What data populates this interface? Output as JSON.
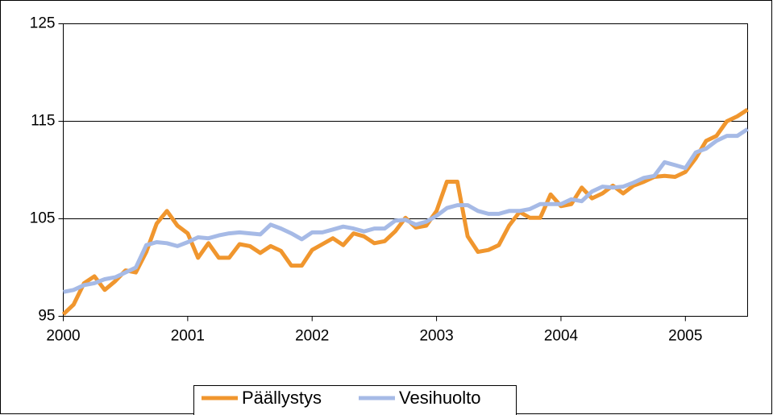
{
  "chart_data": {
    "type": "line",
    "x": [
      2000,
      2000.083,
      2000.167,
      2000.25,
      2000.333,
      2000.417,
      2000.5,
      2000.583,
      2000.667,
      2000.75,
      2000.833,
      2000.917,
      2001,
      2001.083,
      2001.167,
      2001.25,
      2001.333,
      2001.417,
      2001.5,
      2001.583,
      2001.667,
      2001.75,
      2001.833,
      2001.917,
      2002,
      2002.083,
      2002.167,
      2002.25,
      2002.333,
      2002.417,
      2002.5,
      2002.583,
      2002.667,
      2002.75,
      2002.833,
      2002.917,
      2003,
      2003.083,
      2003.167,
      2003.25,
      2003.333,
      2003.417,
      2003.5,
      2003.583,
      2003.667,
      2003.75,
      2003.833,
      2003.917,
      2004,
      2004.083,
      2004.167,
      2004.25,
      2004.333,
      2004.417,
      2004.5,
      2004.583,
      2004.667,
      2004.75,
      2004.833,
      2004.917,
      2005,
      2005.083,
      2005.167,
      2005.25,
      2005.333,
      2005.417,
      2005.5
    ],
    "series": [
      {
        "name": "Päällystys",
        "color": "#f0962e",
        "values": [
          95.2,
          96.2,
          98.4,
          99.1,
          97.7,
          98.6,
          99.7,
          99.5,
          101.6,
          104.5,
          105.8,
          104.3,
          103.5,
          101.0,
          102.5,
          101.0,
          101.0,
          102.4,
          102.2,
          101.5,
          102.2,
          101.7,
          100.2,
          100.2,
          101.8,
          102.4,
          103.0,
          102.3,
          103.5,
          103.2,
          102.5,
          102.7,
          103.7,
          105.1,
          104.1,
          104.3,
          105.8,
          108.8,
          108.8,
          103.2,
          101.6,
          101.8,
          102.3,
          104.3,
          105.7,
          105.1,
          105.1,
          107.5,
          106.3,
          106.5,
          108.2,
          107.1,
          107.6,
          108.4,
          107.6,
          108.4,
          108.8,
          109.3,
          109.4,
          109.3,
          109.8,
          111.2,
          113.0,
          113.5,
          115.0,
          115.5,
          116.2
        ]
      },
      {
        "name": "Vesihuolto",
        "color": "#a6bae6",
        "values": [
          97.5,
          97.7,
          98.2,
          98.4,
          98.8,
          99.0,
          99.5,
          100.0,
          102.3,
          102.6,
          102.5,
          102.2,
          102.6,
          103.1,
          103.0,
          103.3,
          103.5,
          103.6,
          103.5,
          103.4,
          104.4,
          104.0,
          103.5,
          102.9,
          103.6,
          103.6,
          103.9,
          104.2,
          104.0,
          103.7,
          104.0,
          104.0,
          104.8,
          104.9,
          104.4,
          104.7,
          105.3,
          106.1,
          106.4,
          106.4,
          105.8,
          105.5,
          105.5,
          105.8,
          105.8,
          106.0,
          106.5,
          106.5,
          106.5,
          107.0,
          106.8,
          107.8,
          108.3,
          108.2,
          108.3,
          108.7,
          109.2,
          109.4,
          110.8,
          110.5,
          110.2,
          111.8,
          112.2,
          113.0,
          113.5,
          113.5,
          114.2
        ]
      }
    ],
    "xlim": [
      2000,
      2005.5
    ],
    "xticks": [
      2000,
      2001,
      2002,
      2003,
      2004,
      2005
    ],
    "ylim": [
      95,
      125
    ],
    "yticks": [
      95,
      105,
      115,
      125
    ],
    "grid": true,
    "legend": "bottom"
  }
}
